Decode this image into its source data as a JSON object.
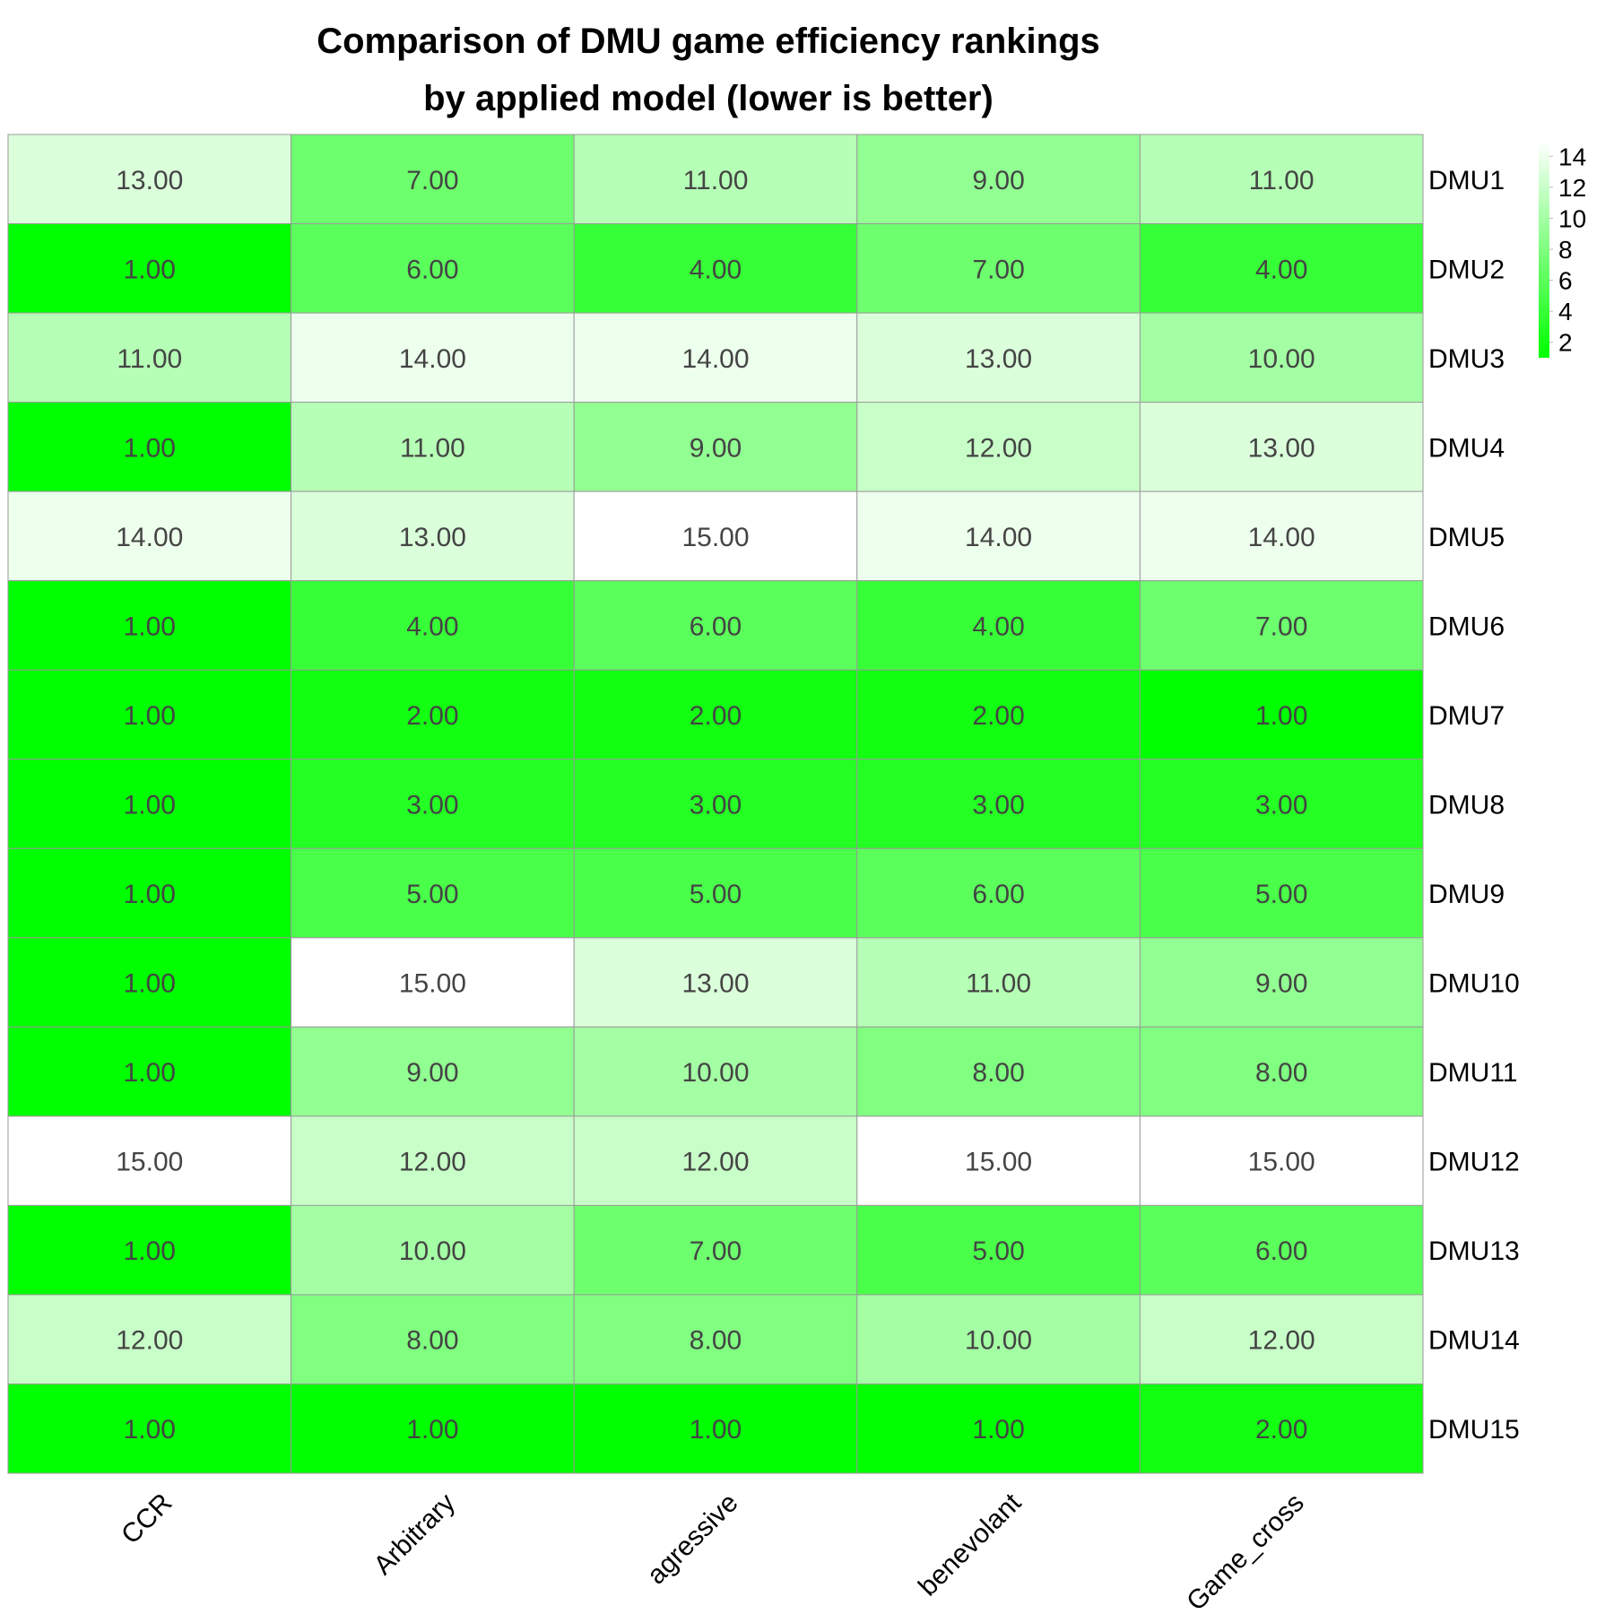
{
  "chart_data": {
    "type": "heatmap",
    "title_lines": [
      "Comparison of DMU game efficiency rankings",
      "by applied model (lower is better)"
    ],
    "columns": [
      "CCR",
      "Arbitrary",
      "agressive",
      "benevolant",
      "Game_cross"
    ],
    "rows": [
      "DMU1",
      "DMU2",
      "DMU3",
      "DMU4",
      "DMU5",
      "DMU6",
      "DMU7",
      "DMU8",
      "DMU9",
      "DMU10",
      "DMU11",
      "DMU12",
      "DMU13",
      "DMU14",
      "DMU15"
    ],
    "values": [
      [
        13,
        7,
        11,
        9,
        11
      ],
      [
        1,
        6,
        4,
        7,
        4
      ],
      [
        11,
        14,
        14,
        13,
        10
      ],
      [
        1,
        11,
        9,
        12,
        13
      ],
      [
        14,
        13,
        15,
        14,
        14
      ],
      [
        1,
        4,
        6,
        4,
        7
      ],
      [
        1,
        2,
        2,
        2,
        1
      ],
      [
        1,
        3,
        3,
        3,
        3
      ],
      [
        1,
        5,
        5,
        6,
        5
      ],
      [
        1,
        15,
        13,
        11,
        9
      ],
      [
        1,
        9,
        10,
        8,
        8
      ],
      [
        15,
        12,
        12,
        15,
        15
      ],
      [
        1,
        10,
        7,
        5,
        6
      ],
      [
        12,
        8,
        8,
        10,
        12
      ],
      [
        1,
        1,
        1,
        1,
        2
      ]
    ],
    "value_format_decimals": 2,
    "color_scale": {
      "low_color": "#00ff00",
      "high_color": "#ffffff",
      "min": 1,
      "max": 15
    },
    "legend": {
      "position": "top-right",
      "ticks": [
        2,
        4,
        6,
        8,
        10,
        12,
        14
      ]
    }
  }
}
